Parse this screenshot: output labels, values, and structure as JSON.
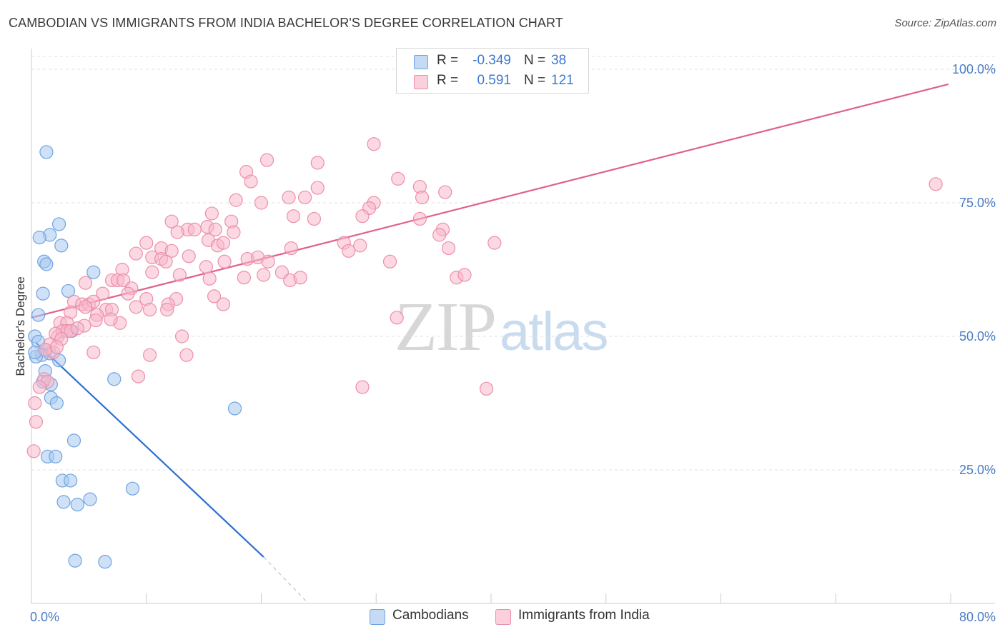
{
  "header": {
    "title": "CAMBODIAN VS IMMIGRANTS FROM INDIA BACHELOR'S DEGREE CORRELATION CHART",
    "source": "Source: ZipAtlas.com"
  },
  "watermark": {
    "zip": "ZIP",
    "atlas": "atlas"
  },
  "stats": [
    {
      "r_label": "R =",
      "r_value": "-0.349",
      "n_label": "N =",
      "n_value": "38",
      "color": "#a8c8f0"
    },
    {
      "r_label": "R =",
      "r_value": "0.591",
      "n_label": "N =",
      "n_value": "121",
      "color": "#f7b8cb"
    }
  ],
  "legend": [
    {
      "label": "Cambodians",
      "color": "#a8c8f0"
    },
    {
      "label": "Immigrants from India",
      "color": "#f7b8cb"
    }
  ],
  "chart_data": {
    "type": "scatter",
    "title": "CAMBODIAN VS IMMIGRANTS FROM INDIA BACHELOR'S DEGREE CORRELATION CHART",
    "xlabel": "",
    "ylabel": "Bachelor's Degree",
    "xlim": [
      0,
      80
    ],
    "ylim": [
      0,
      100
    ],
    "x_tick_labels": [
      "0.0%",
      "80.0%"
    ],
    "y_tick_labels": [
      "25.0%",
      "50.0%",
      "75.0%",
      "100.0%"
    ],
    "y_ticks": [
      25,
      50,
      75,
      100
    ],
    "grid": true,
    "legend_position": "bottom",
    "series": [
      {
        "name": "Cambodians",
        "color": "#6fa3e0",
        "fill": "#a8c8f0",
        "trend": {
          "x": [
            0.4,
            20.2
          ],
          "y": [
            48.8,
            8.7
          ],
          "dash_to": [
            24.1,
            0.0
          ],
          "color": "#2a6fd0"
        },
        "points": [
          [
            1.3,
            84.5
          ],
          [
            2.4,
            71.0
          ],
          [
            1.6,
            69.0
          ],
          [
            0.7,
            68.5
          ],
          [
            2.6,
            67.0
          ],
          [
            1.1,
            64.0
          ],
          [
            1.3,
            63.5
          ],
          [
            5.4,
            62.0
          ],
          [
            3.2,
            58.5
          ],
          [
            1.0,
            58.0
          ],
          [
            0.6,
            54.0
          ],
          [
            0.3,
            50.0
          ],
          [
            3.5,
            51.0
          ],
          [
            0.6,
            49.0
          ],
          [
            1.2,
            47.5
          ],
          [
            0.9,
            46.5
          ],
          [
            1.6,
            46.8
          ],
          [
            2.4,
            45.5
          ],
          [
            0.4,
            46.2
          ],
          [
            1.2,
            43.5
          ],
          [
            1.7,
            41.0
          ],
          [
            7.2,
            42.0
          ],
          [
            1.7,
            38.5
          ],
          [
            2.2,
            37.5
          ],
          [
            17.7,
            36.5
          ],
          [
            3.7,
            30.5
          ],
          [
            1.4,
            27.5
          ],
          [
            2.1,
            27.5
          ],
          [
            2.7,
            23.0
          ],
          [
            3.4,
            23.0
          ],
          [
            8.8,
            21.5
          ],
          [
            5.1,
            19.5
          ],
          [
            2.8,
            19.0
          ],
          [
            4.0,
            18.5
          ],
          [
            3.8,
            8.0
          ],
          [
            6.4,
            7.8
          ],
          [
            0.3,
            47.0
          ],
          [
            1.0,
            41.5
          ]
        ]
      },
      {
        "name": "Immigrants from India",
        "color": "#ec8fac",
        "fill": "#f7b8cb",
        "trend": {
          "x": [
            0.0,
            79.8
          ],
          "y": [
            53.5,
            97.2
          ],
          "color": "#e0608c"
        },
        "points": [
          [
            29.8,
            86.0
          ],
          [
            20.5,
            83.0
          ],
          [
            24.9,
            82.5
          ],
          [
            18.7,
            80.8
          ],
          [
            19.1,
            79.0
          ],
          [
            31.9,
            79.5
          ],
          [
            33.8,
            78.0
          ],
          [
            24.9,
            77.8
          ],
          [
            36.0,
            77.0
          ],
          [
            22.4,
            76.0
          ],
          [
            23.8,
            76.0
          ],
          [
            17.8,
            75.5
          ],
          [
            20.0,
            75.0
          ],
          [
            29.8,
            75.0
          ],
          [
            29.4,
            74.0
          ],
          [
            78.7,
            78.5
          ],
          [
            34.0,
            76.0
          ],
          [
            15.7,
            73.0
          ],
          [
            22.8,
            72.5
          ],
          [
            28.8,
            72.5
          ],
          [
            24.6,
            72.0
          ],
          [
            33.8,
            72.0
          ],
          [
            12.2,
            71.5
          ],
          [
            17.4,
            71.5
          ],
          [
            15.3,
            70.5
          ],
          [
            13.6,
            70.0
          ],
          [
            14.2,
            70.0
          ],
          [
            16.0,
            70.0
          ],
          [
            12.7,
            69.5
          ],
          [
            15.4,
            68.0
          ],
          [
            35.8,
            70.0
          ],
          [
            35.5,
            69.0
          ],
          [
            17.6,
            69.5
          ],
          [
            10.0,
            67.5
          ],
          [
            16.2,
            67.0
          ],
          [
            16.7,
            67.5
          ],
          [
            27.2,
            67.5
          ],
          [
            40.3,
            67.5
          ],
          [
            11.3,
            66.5
          ],
          [
            22.6,
            66.5
          ],
          [
            12.2,
            66.0
          ],
          [
            9.1,
            65.5
          ],
          [
            27.6,
            66.0
          ],
          [
            36.3,
            66.5
          ],
          [
            10.5,
            64.8
          ],
          [
            13.7,
            65.0
          ],
          [
            11.3,
            64.5
          ],
          [
            11.7,
            64.0
          ],
          [
            16.8,
            64.0
          ],
          [
            18.8,
            64.5
          ],
          [
            19.7,
            64.8
          ],
          [
            20.6,
            64.0
          ],
          [
            31.2,
            64.0
          ],
          [
            15.2,
            63.0
          ],
          [
            7.9,
            62.5
          ],
          [
            10.5,
            62.0
          ],
          [
            12.9,
            61.5
          ],
          [
            21.8,
            62.0
          ],
          [
            18.5,
            61.0
          ],
          [
            20.2,
            61.5
          ],
          [
            7.0,
            60.5
          ],
          [
            7.5,
            60.5
          ],
          [
            8.0,
            60.5
          ],
          [
            15.5,
            60.8
          ],
          [
            22.5,
            60.5
          ],
          [
            23.4,
            61.0
          ],
          [
            4.7,
            60.0
          ],
          [
            8.7,
            59.0
          ],
          [
            6.2,
            58.0
          ],
          [
            10.0,
            57.0
          ],
          [
            15.9,
            57.5
          ],
          [
            12.6,
            57.0
          ],
          [
            3.7,
            56.5
          ],
          [
            4.4,
            56.0
          ],
          [
            5.0,
            56.0
          ],
          [
            5.4,
            56.5
          ],
          [
            10.3,
            55.0
          ],
          [
            11.9,
            56.0
          ],
          [
            16.7,
            56.0
          ],
          [
            4.7,
            55.5
          ],
          [
            9.1,
            55.5
          ],
          [
            6.5,
            55.0
          ],
          [
            7.0,
            55.0
          ],
          [
            11.8,
            55.0
          ],
          [
            5.7,
            54.0
          ],
          [
            3.4,
            54.5
          ],
          [
            2.5,
            52.5
          ],
          [
            5.6,
            53.0
          ],
          [
            3.1,
            52.5
          ],
          [
            4.6,
            52.0
          ],
          [
            7.7,
            52.5
          ],
          [
            31.8,
            53.5
          ],
          [
            2.3,
            50.0
          ],
          [
            2.7,
            51.0
          ],
          [
            3.1,
            51.0
          ],
          [
            3.4,
            51.0
          ],
          [
            2.1,
            50.5
          ],
          [
            2.6,
            49.5
          ],
          [
            13.1,
            50.0
          ],
          [
            1.6,
            48.5
          ],
          [
            1.9,
            47.0
          ],
          [
            1.2,
            47.5
          ],
          [
            5.4,
            47.0
          ],
          [
            10.3,
            46.5
          ],
          [
            13.5,
            46.5
          ],
          [
            9.3,
            42.5
          ],
          [
            1.1,
            42.0
          ],
          [
            1.4,
            41.5
          ],
          [
            28.8,
            40.5
          ],
          [
            39.6,
            40.2
          ],
          [
            0.7,
            40.5
          ],
          [
            0.3,
            37.5
          ],
          [
            0.4,
            34.0
          ],
          [
            0.2,
            28.5
          ],
          [
            37.0,
            61.0
          ],
          [
            37.7,
            61.5
          ],
          [
            28.6,
            67.0
          ],
          [
            2.2,
            48.0
          ],
          [
            4.0,
            51.5
          ],
          [
            6.9,
            53.2
          ],
          [
            8.4,
            58.0
          ]
        ]
      }
    ]
  }
}
